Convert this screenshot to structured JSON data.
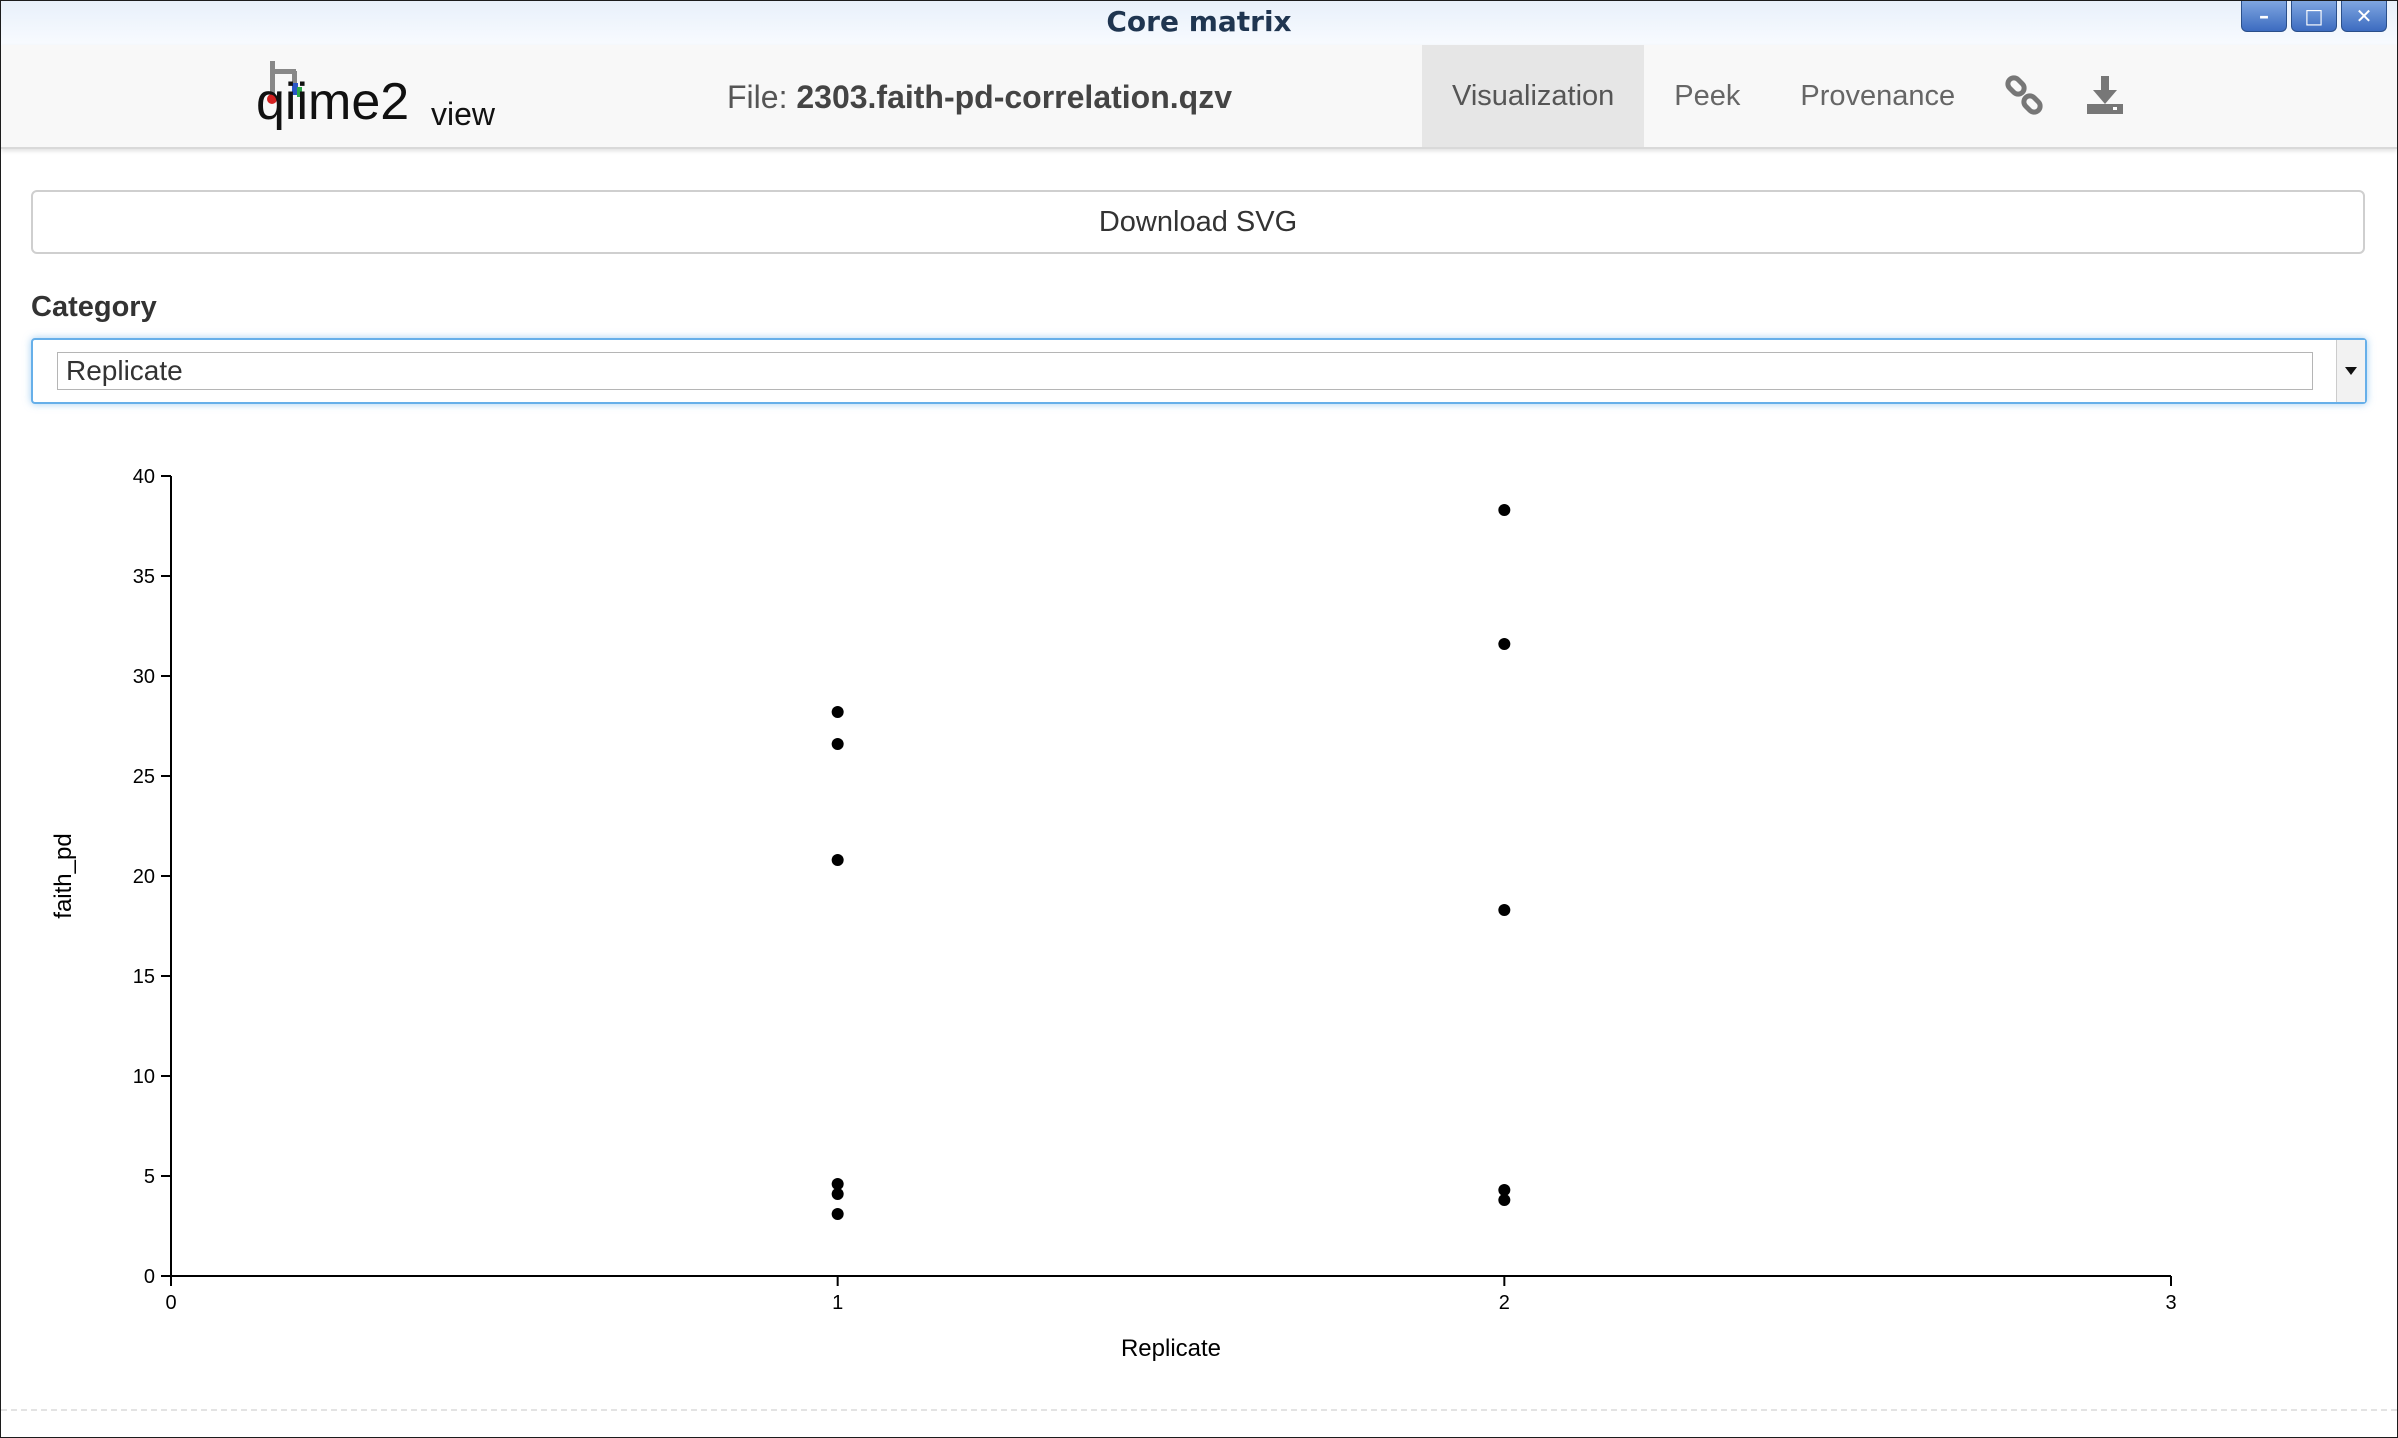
{
  "window": {
    "title": "Core matrix",
    "controls": {
      "minimize": "–",
      "maximize": "□",
      "close": "✕"
    }
  },
  "header": {
    "logo_text": "qiime2",
    "logo_suffix": "view",
    "file_prefix": "File: ",
    "file_name": "2303.faith-pd-correlation.qzv",
    "tabs": [
      {
        "label": "Visualization",
        "active": true
      },
      {
        "label": "Peek",
        "active": false
      },
      {
        "label": "Provenance",
        "active": false
      }
    ],
    "icons": [
      "link-icon",
      "download-icon"
    ]
  },
  "main": {
    "download_label": "Download SVG",
    "category_label": "Category",
    "category_value": "Replicate"
  },
  "chart_data": {
    "type": "scatter",
    "xlabel": "Replicate",
    "ylabel": "faith_pd",
    "xlim": [
      0,
      3
    ],
    "ylim": [
      0,
      40
    ],
    "xticks": [
      0,
      1,
      2,
      3
    ],
    "yticks": [
      0,
      5,
      10,
      15,
      20,
      25,
      30,
      35,
      40
    ],
    "grid": false,
    "points": [
      {
        "x": 1,
        "y": 28.2
      },
      {
        "x": 1,
        "y": 26.6
      },
      {
        "x": 1,
        "y": 20.8
      },
      {
        "x": 1,
        "y": 4.6
      },
      {
        "x": 1,
        "y": 4.1
      },
      {
        "x": 1,
        "y": 3.1
      },
      {
        "x": 2,
        "y": 38.3
      },
      {
        "x": 2,
        "y": 31.6
      },
      {
        "x": 2,
        "y": 18.3
      },
      {
        "x": 2,
        "y": 4.3
      },
      {
        "x": 2,
        "y": 3.8
      }
    ]
  }
}
